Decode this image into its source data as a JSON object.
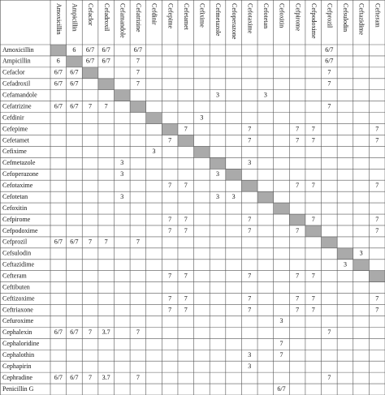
{
  "table": {
    "columns": [
      "Amoxicillin",
      "Ampicillin",
      "Cefaclor",
      "Cefadroxil",
      "Cefamandole",
      "Cefatrizine",
      "Cefdinir",
      "Cefepime",
      "Cefetamet",
      "Cefixime",
      "Cefmetazole",
      "Cefoperazone",
      "Cefotaxime",
      "Cefotetan",
      "Cefoxitin",
      "Cefpirome",
      "Cefpodoxime",
      "Cefprozil",
      "Cefsulodin",
      "Ceftazidime",
      "Cefteram"
    ],
    "rows": [
      {
        "label": "Amoxicillin",
        "values": {
          "1": "6",
          "2": "6/7",
          "3": "6/7",
          "5": "6/7",
          "17": "6/7"
        }
      },
      {
        "label": "Ampicillin",
        "values": {
          "0": "6",
          "2": "6/7",
          "3": "6/7",
          "5": "7",
          "17": "6/7"
        }
      },
      {
        "label": "Cefaclor",
        "values": {
          "0": "6/7",
          "1": "6/7",
          "5": "7",
          "17": "7"
        }
      },
      {
        "label": "Cefadroxil",
        "values": {
          "0": "6/7",
          "1": "6/7",
          "5": "7",
          "17": "7"
        }
      },
      {
        "label": "Cefamandole",
        "values": {
          "10": "3",
          "13": "3"
        }
      },
      {
        "label": "Cefatrizine",
        "values": {
          "0": "6/7",
          "1": "6/7",
          "2": "7",
          "3": "7",
          "17": "7"
        }
      },
      {
        "label": "Cefdinir",
        "values": {
          "9": "3"
        }
      },
      {
        "label": "Cefepime",
        "values": {
          "8": "7",
          "12": "7",
          "15": "7",
          "16": "7",
          "20": "7"
        }
      },
      {
        "label": "Cefetamet",
        "values": {
          "7": "7",
          "12": "7",
          "15": "7",
          "16": "7",
          "20": "7"
        }
      },
      {
        "label": "Cefixime",
        "values": {
          "6": "3"
        }
      },
      {
        "label": "Cefmetazole",
        "values": {
          "4": "3",
          "12": "3"
        }
      },
      {
        "label": "Cefoperazone",
        "values": {
          "4": "3",
          "10": "3"
        }
      },
      {
        "label": "Cefotaxime",
        "values": {
          "7": "7",
          "8": "7",
          "15": "7",
          "16": "7",
          "20": "7"
        }
      },
      {
        "label": "Cefotetan",
        "values": {
          "4": "3",
          "10": "3",
          "11": "3"
        }
      },
      {
        "label": "Cefoxitin",
        "values": {}
      },
      {
        "label": "Cefpirome",
        "values": {
          "7": "7",
          "8": "7",
          "12": "7",
          "16": "7",
          "20": "7"
        }
      },
      {
        "label": "Cefpodoxime",
        "values": {
          "7": "7",
          "8": "7",
          "12": "7",
          "15": "7",
          "20": "7"
        }
      },
      {
        "label": "Cefprozil",
        "values": {
          "0": "6/7",
          "1": "6/7",
          "2": "7",
          "3": "7",
          "5": "7"
        }
      },
      {
        "label": "Cefsulodin",
        "values": {
          "19": "3"
        }
      },
      {
        "label": "Ceftazidime",
        "values": {
          "18": "3"
        }
      },
      {
        "label": "Cefteram",
        "values": {
          "7": "7",
          "8": "7",
          "12": "7",
          "15": "7",
          "16": "7"
        }
      },
      {
        "label": "Ceftibuten",
        "values": {}
      },
      {
        "label": "Ceftizoxime",
        "values": {
          "7": "7",
          "8": "7",
          "12": "7",
          "15": "7",
          "16": "7",
          "20": "7"
        }
      },
      {
        "label": "Ceftriaxone",
        "values": {
          "7": "7",
          "8": "7",
          "12": "7",
          "15": "7",
          "16": "7",
          "20": "7"
        }
      },
      {
        "label": "Cefuroxime",
        "values": {
          "14": "3"
        }
      },
      {
        "label": "Cephalexin",
        "values": {
          "0": "6/7",
          "1": "6/7",
          "2": "7",
          "3": "3.7",
          "5": "7",
          "17": "7"
        }
      },
      {
        "label": "Cephaloridine",
        "values": {
          "14": "7"
        }
      },
      {
        "label": "Cephalothin",
        "values": {
          "12": "3",
          "14": "7"
        }
      },
      {
        "label": "Cephapirin",
        "values": {
          "12": "3"
        }
      },
      {
        "label": "Cephradine",
        "values": {
          "0": "6/7",
          "1": "6/7",
          "2": "7",
          "3": "3.7",
          "5": "7",
          "17": "7"
        }
      },
      {
        "label": "Penicillin G",
        "values": {
          "14": "6/7"
        }
      }
    ]
  }
}
